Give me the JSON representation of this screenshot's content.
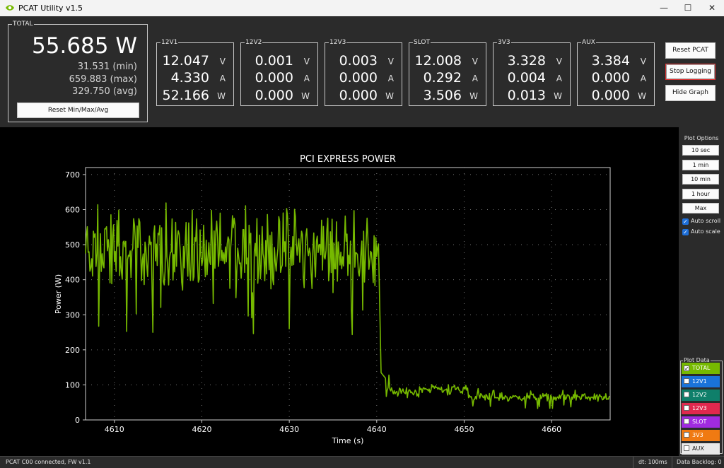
{
  "window": {
    "title": "PCAT Utility v1.5",
    "min_glyph": "—",
    "max_glyph": "☐",
    "close_glyph": "✕"
  },
  "total": {
    "label": "TOTAL",
    "value": "55.685 W",
    "min": "31.531 (min)",
    "max": "659.883 (max)",
    "avg": "329.750 (avg)",
    "reset_label": "Reset Min/Max/Avg"
  },
  "rails": [
    {
      "label": "12V1",
      "v": "12.047",
      "a": "4.330",
      "w": "52.166"
    },
    {
      "label": "12V2",
      "v": "0.001",
      "a": "0.000",
      "w": "0.000"
    },
    {
      "label": "12V3",
      "v": "0.003",
      "a": "0.000",
      "w": "0.000"
    },
    {
      "label": "SLOT",
      "v": "12.008",
      "a": "0.292",
      "w": "3.506"
    },
    {
      "label": "3V3",
      "v": "3.328",
      "a": "0.004",
      "w": "0.013"
    },
    {
      "label": "AUX",
      "v": "3.384",
      "a": "0.000",
      "w": "0.000"
    }
  ],
  "units": {
    "v": "V",
    "a": "A",
    "w": "W"
  },
  "actions": {
    "reset_pcat": "Reset PCAT",
    "stop_logging": "Stop Logging",
    "hide_graph": "Hide Graph"
  },
  "plot_options": {
    "header": "Plot Options",
    "ranges": [
      "10 sec",
      "1 min",
      "10 min",
      "1 hour",
      "Max"
    ],
    "auto_scroll": "Auto scroll",
    "auto_scale": "Auto scale"
  },
  "plot_data": {
    "header": "Plot Data",
    "items": [
      {
        "label": "TOTAL",
        "color": "#76b900",
        "checked": true
      },
      {
        "label": "12V1",
        "color": "#1a73d9",
        "checked": false
      },
      {
        "label": "12V2",
        "color": "#0f7f6a",
        "checked": false
      },
      {
        "label": "12V3",
        "color": "#e0284e",
        "checked": false
      },
      {
        "label": "SLOT",
        "color": "#a02be0",
        "checked": false
      },
      {
        "label": "3V3",
        "color": "#f07a12",
        "checked": false
      },
      {
        "label": "AUX",
        "color": "#e8e8e8",
        "checked": false
      }
    ]
  },
  "status": {
    "connection": "PCAT C00 connected, FW v1.1",
    "dt": "dt: 100ms",
    "backlog": "Data Backlog: 0"
  },
  "chart_data": {
    "type": "line",
    "title": "PCI EXPRESS POWER",
    "xlabel": "Time (s)",
    "ylabel": "Power (W)",
    "xlim": [
      4606.7,
      4666.7
    ],
    "ylim": [
      0,
      720
    ],
    "xticks": [
      4610,
      4620,
      4630,
      4640,
      4650,
      4660
    ],
    "yticks": [
      0,
      100,
      200,
      300,
      400,
      500,
      600,
      700
    ],
    "grid": true,
    "series": [
      {
        "color": "#76b900",
        "segments": [
          {
            "x_start": 4606.7,
            "x_end": 4640.3,
            "mean": 480,
            "amplitude": 95,
            "min": 240,
            "max": 625
          },
          {
            "x": 4640.5,
            "value": 135
          },
          {
            "x_start": 4641.0,
            "x_end": 4645.0,
            "mean": 80,
            "amplitude": 12,
            "min": 62,
            "max": 130
          },
          {
            "x_start": 4645.0,
            "x_end": 4650.5,
            "mean": 88,
            "amplitude": 10,
            "min": 70,
            "max": 105
          },
          {
            "x_start": 4650.5,
            "x_end": 4666.7,
            "mean": 65,
            "amplitude": 10,
            "min": 32,
            "max": 90
          }
        ]
      }
    ]
  }
}
